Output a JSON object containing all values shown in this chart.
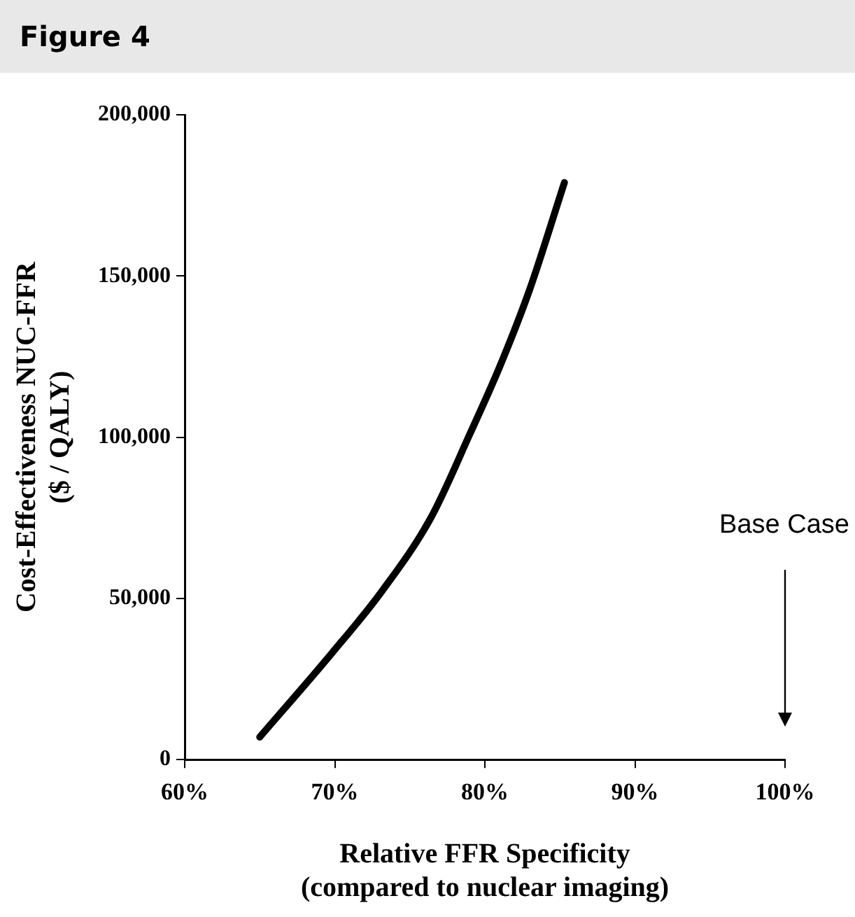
{
  "chart_data": {
    "type": "line",
    "title": "Figure 4",
    "xlabel": "Relative FFR Specificity\n(compared to nuclear imaging)",
    "ylabel": "Cost-Effectiveness NUC-FFR\n($ / QALY)",
    "xlim": [
      60,
      100
    ],
    "xticks": [
      {
        "value": 60,
        "label": "60%"
      },
      {
        "value": 70,
        "label": "70%"
      },
      {
        "value": 80,
        "label": "80%"
      },
      {
        "value": 90,
        "label": "90%"
      },
      {
        "value": 100,
        "label": "100%"
      }
    ],
    "ylim": [
      0,
      200000
    ],
    "yticks": [
      {
        "value": 0,
        "label": "0"
      },
      {
        "value": 50000,
        "label": "50,000"
      },
      {
        "value": 100000,
        "label": "100,000"
      },
      {
        "value": 150000,
        "label": "150,000"
      },
      {
        "value": 200000,
        "label": "200,000"
      }
    ],
    "series": [
      {
        "color": "#000000",
        "x": [
          65,
          69.8,
          73.1,
          76.4,
          79,
          81,
          83,
          85.3
        ],
        "values": [
          7000,
          33000,
          52000,
          75000,
          101000,
          122000,
          146000,
          179000
        ]
      }
    ],
    "annotations": [
      "Base Case"
    ],
    "grid": false,
    "legend": false,
    "marker": "none",
    "line_style": "solid"
  }
}
